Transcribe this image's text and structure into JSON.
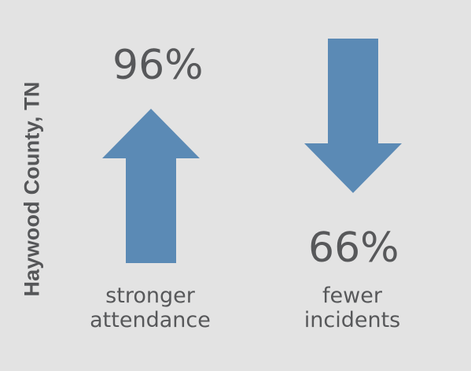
{
  "side_title": "Haywood County, TN",
  "left_stat": {
    "value": "96%",
    "label_line1": "stronger",
    "label_line2": "attendance",
    "arrow": "arrow-up-icon"
  },
  "right_stat": {
    "value": "66%",
    "label_line1": "fewer",
    "label_line2": "incidents",
    "arrow": "arrow-down-icon"
  },
  "colors": {
    "background": "#e3e3e3",
    "arrow": "#5b8ab5",
    "text": "#57585a"
  }
}
